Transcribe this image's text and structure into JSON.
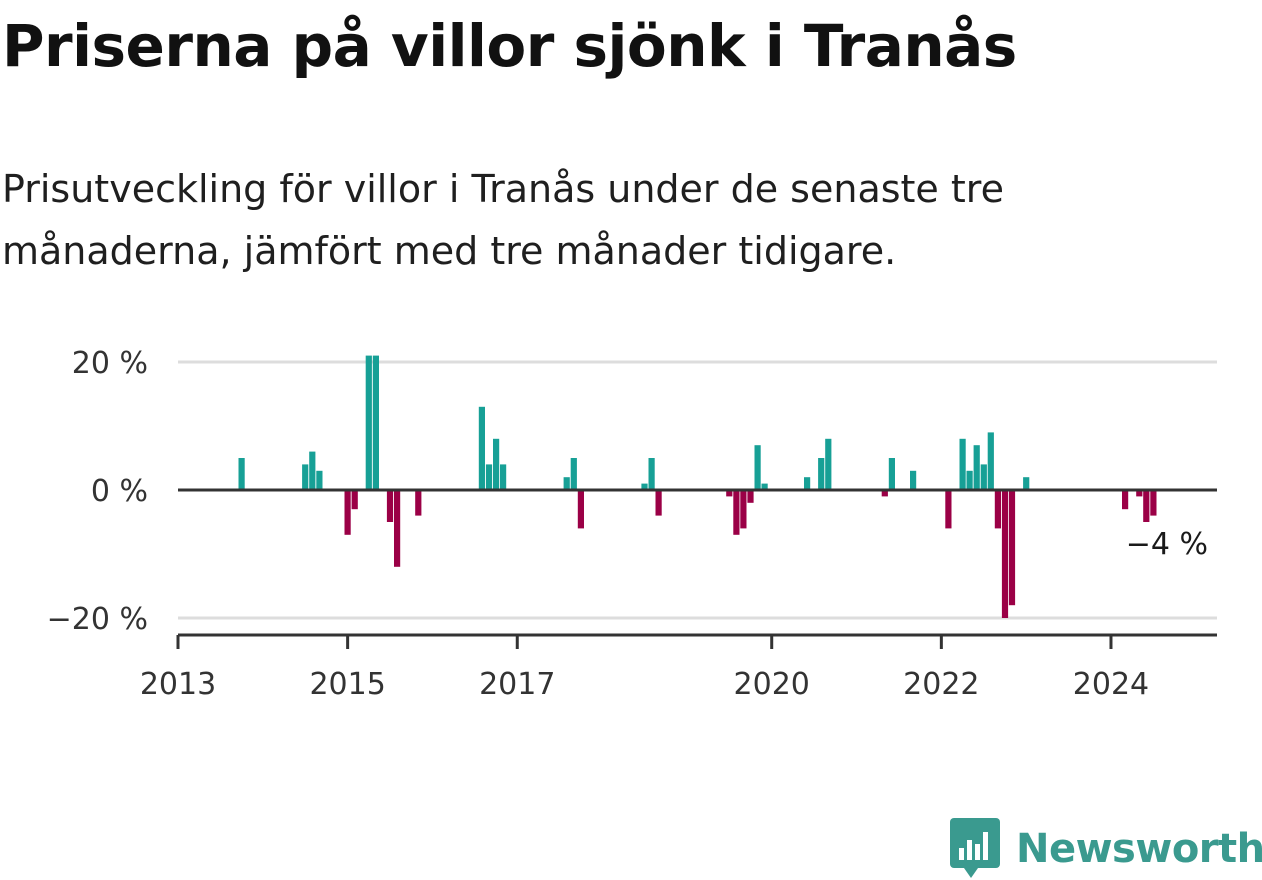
{
  "title": "Priserna på villor sjönk i Tranås",
  "subtitle": "Prisutveckling för villor i Tranås under de senaste tre månaderna, jämfört med tre månader tidigare.",
  "brand": {
    "name": "Newsworthy",
    "icon": "newsworthy-logo-icon"
  },
  "colors": {
    "positive": "#17a096",
    "negative": "#9b0046",
    "grid": "#dddddd",
    "axis": "#333333"
  },
  "chart_data": {
    "type": "bar",
    "title": "Priserna på villor sjönk i Tranås",
    "subtitle": "Prisutveckling för villor i Tranås under de senaste tre månaderna, jämfört med tre månader tidigare.",
    "xlabel": "",
    "ylabel": "",
    "unit": "%",
    "xlim": [
      "2013-01",
      "2025-04"
    ],
    "ylim": [
      -22,
      22
    ],
    "grid": true,
    "legend": "none",
    "y_ticks": [
      {
        "value": 20,
        "label": "20 %"
      },
      {
        "value": 0,
        "label": "0 %"
      },
      {
        "value": -20,
        "label": "−20 %"
      }
    ],
    "x_ticks": [
      {
        "date": "2013-01",
        "label": "2013"
      },
      {
        "date": "2015-01",
        "label": "2015"
      },
      {
        "date": "2017-01",
        "label": "2017"
      },
      {
        "date": "2020-01",
        "label": "2020"
      },
      {
        "date": "2022-01",
        "label": "2022"
      },
      {
        "date": "2024-01",
        "label": "2024"
      }
    ],
    "annotation": {
      "date": "2024-07",
      "value": -4,
      "label": "−4 %"
    },
    "series": [
      {
        "x": [
          "2013-10",
          "2014-07",
          "2014-08",
          "2014-09",
          "2015-01",
          "2015-02",
          "2015-04",
          "2015-05",
          "2015-07",
          "2015-08",
          "2015-11",
          "2016-08",
          "2016-09",
          "2016-10",
          "2016-11",
          "2017-08",
          "2017-09",
          "2017-10",
          "2018-07",
          "2018-08",
          "2018-09",
          "2019-07",
          "2019-08",
          "2019-09",
          "2019-10",
          "2019-11",
          "2019-12",
          "2020-06",
          "2020-08",
          "2020-09",
          "2021-05",
          "2021-06",
          "2021-09",
          "2022-02",
          "2022-04",
          "2022-05",
          "2022-06",
          "2022-07",
          "2022-08",
          "2022-09",
          "2022-10",
          "2022-11",
          "2023-01",
          "2024-03",
          "2024-05",
          "2024-06",
          "2024-07"
        ],
        "values": [
          5,
          4,
          6,
          3,
          -7,
          -3,
          21,
          21,
          -5,
          -12,
          -4,
          13,
          4,
          8,
          4,
          2,
          5,
          -6,
          1,
          5,
          -4,
          -1,
          -7,
          -6,
          -2,
          7,
          1,
          2,
          5,
          8,
          -1,
          5,
          3,
          -6,
          8,
          3,
          7,
          4,
          9,
          -6,
          -20,
          -18,
          2,
          -3,
          -1,
          -5,
          -4
        ]
      }
    ]
  }
}
